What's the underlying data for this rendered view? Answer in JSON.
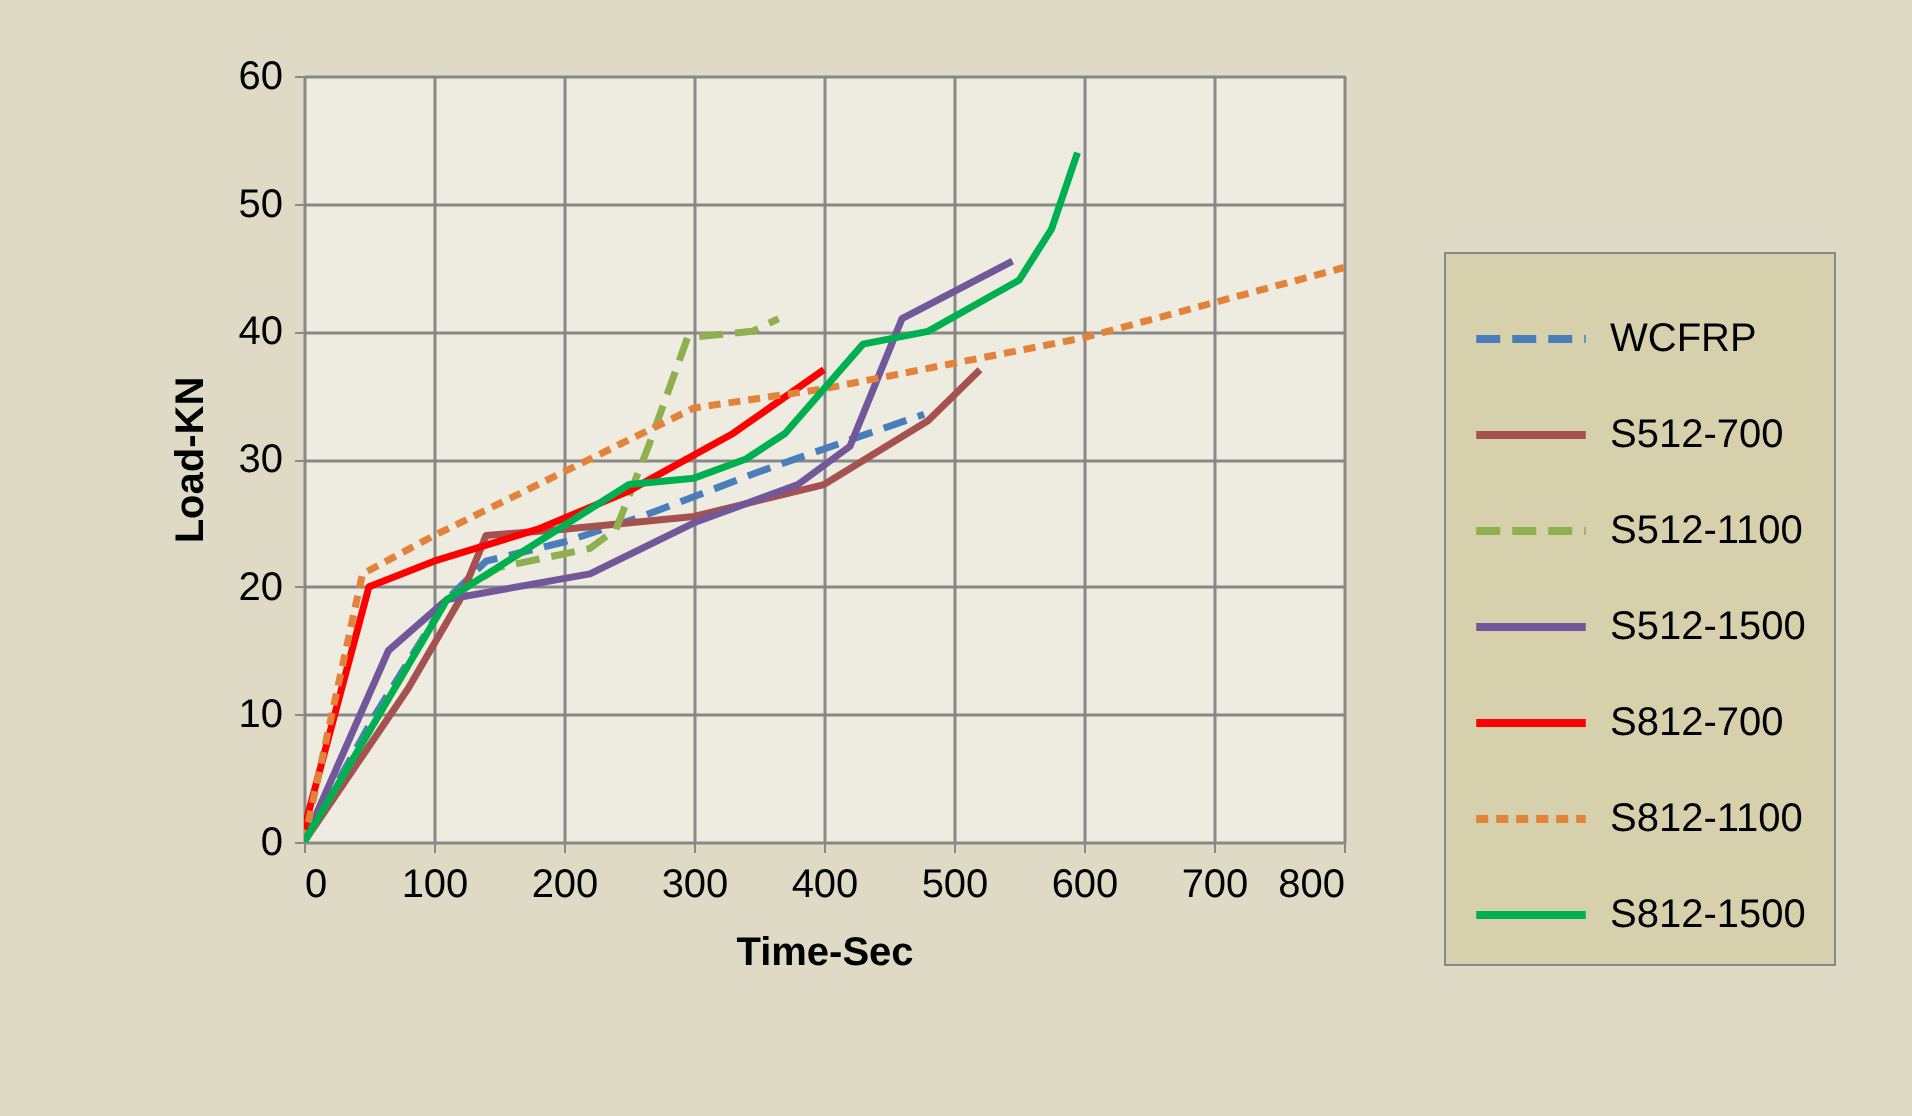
{
  "chart_data": {
    "type": "line",
    "xlabel": "Time-Sec",
    "ylabel": "Load-KN",
    "xlim": [
      0,
      800
    ],
    "xticks": [
      0,
      100,
      200,
      300,
      400,
      500,
      600,
      700,
      800
    ],
    "ylim": [
      0,
      60
    ],
    "yticks": [
      0,
      10,
      20,
      30,
      40,
      50,
      60
    ],
    "grid": true,
    "legend": "right",
    "marker": "none",
    "series": [
      {
        "name": "WCFRP",
        "color": "#4a7ebb",
        "line_style": "dashed",
        "x": [
          0,
          55,
          110,
          140,
          200,
          260,
          350,
          420,
          477
        ],
        "values": [
          0,
          10,
          19,
          22,
          23.5,
          25.5,
          29,
          31.5,
          33.5
        ]
      },
      {
        "name": "S512-700",
        "color": "#a5514f",
        "line_style": "solid",
        "x": [
          0,
          80,
          120,
          140,
          200,
          300,
          400,
          480,
          520
        ],
        "values": [
          0,
          12,
          19,
          24,
          24.5,
          25.5,
          28,
          33,
          37
        ]
      },
      {
        "name": "S512-1100",
        "color": "#8eb04f",
        "line_style": "dashed",
        "x": [
          0,
          110,
          150,
          220,
          240,
          265,
          295,
          345,
          365
        ],
        "values": [
          0,
          19,
          21.5,
          23,
          24.5,
          31,
          39.5,
          40,
          41
        ]
      },
      {
        "name": "S512-1500",
        "color": "#72589a",
        "line_style": "solid",
        "x": [
          0,
          65,
          110,
          220,
          300,
          380,
          420,
          460,
          545
        ],
        "values": [
          0,
          15,
          19,
          21,
          25,
          28,
          31,
          41,
          45.5
        ]
      },
      {
        "name": "S812-700",
        "color": "#ff0000",
        "line_style": "solid",
        "x": [
          0,
          50,
          100,
          180,
          250,
          330,
          400
        ],
        "values": [
          1,
          20,
          22,
          24.5,
          27.5,
          32,
          37
        ]
      },
      {
        "name": "S812-1100",
        "color": "#e3823a",
        "line_style": "dotted",
        "x": [
          0,
          45,
          100,
          170,
          250,
          300,
          400,
          500,
          600,
          800
        ],
        "values": [
          0,
          21,
          24,
          27.5,
          31.5,
          34,
          35.5,
          37.5,
          39.5,
          45
        ]
      },
      {
        "name": "S812-1500",
        "color": "#00b050",
        "line_style": "solid",
        "x": [
          0,
          110,
          180,
          250,
          300,
          340,
          370,
          430,
          480,
          550,
          575,
          595
        ],
        "values": [
          0,
          19,
          23.5,
          28,
          28.5,
          30,
          32,
          39,
          40,
          44,
          48,
          54
        ]
      }
    ]
  }
}
